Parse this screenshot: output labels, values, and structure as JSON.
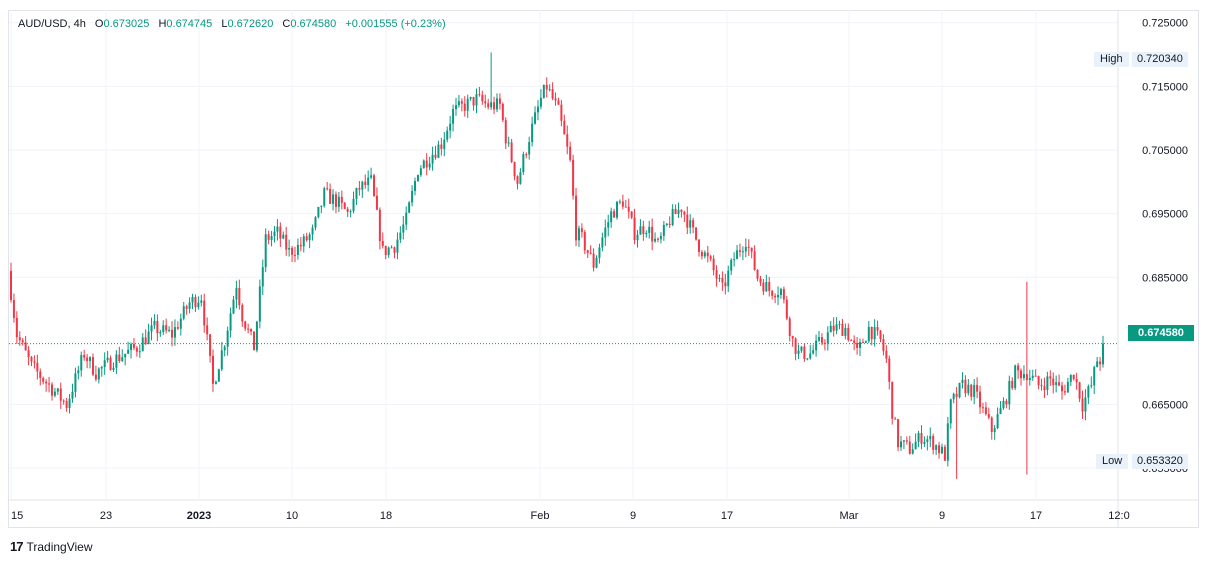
{
  "legend": {
    "symbol": "AUD/USD, 4h",
    "open_label": "O",
    "open": "0.673025",
    "high_label": "H",
    "high": "0.674745",
    "low_label": "L",
    "low": "0.672620",
    "close_label": "C",
    "close": "0.674580",
    "change": "+0.001555 (+0.23%)"
  },
  "price_scale": {
    "ticks": [
      "0.725000",
      "0.715000",
      "0.705000",
      "0.695000",
      "0.685000",
      "0.665000",
      "0.655000"
    ],
    "current_price": "0.674580",
    "high_label": "High",
    "high_value": "0.720340",
    "low_label": "Low",
    "low_value": "0.653320"
  },
  "time_scale": {
    "ticks": [
      "15",
      "23",
      "2023",
      "10",
      "18",
      "Feb",
      "9",
      "17",
      "Mar",
      "9",
      "17",
      "12:0"
    ]
  },
  "brand": {
    "name": "TradingView"
  },
  "colors": {
    "up": "#089981",
    "down": "#f23645",
    "grid": "#f0f3fa",
    "price_line": "#089981"
  },
  "chart_data": {
    "type": "candlestick",
    "symbol": "AUD/USD",
    "interval": "4h",
    "ylim": [
      0.65,
      0.727
    ],
    "x_ticks": [
      "15",
      "23",
      "2023",
      "10",
      "18",
      "Feb",
      "9",
      "17",
      "Mar",
      "9",
      "17",
      "12:0"
    ],
    "anchors": [
      [
        0,
        0.686
      ],
      [
        3,
        0.676
      ],
      [
        8,
        0.671
      ],
      [
        14,
        0.668
      ],
      [
        20,
        0.665
      ],
      [
        26,
        0.673
      ],
      [
        30,
        0.67
      ],
      [
        36,
        0.672
      ],
      [
        44,
        0.674
      ],
      [
        50,
        0.677
      ],
      [
        56,
        0.676
      ],
      [
        62,
        0.681
      ],
      [
        66,
        0.682
      ],
      [
        70,
        0.668
      ],
      [
        74,
        0.675
      ],
      [
        78,
        0.684
      ],
      [
        80,
        0.679
      ],
      [
        84,
        0.674
      ],
      [
        88,
        0.691
      ],
      [
        92,
        0.692
      ],
      [
        96,
        0.689
      ],
      [
        100,
        0.69
      ],
      [
        104,
        0.692
      ],
      [
        108,
        0.698
      ],
      [
        112,
        0.697
      ],
      [
        116,
        0.695
      ],
      [
        120,
        0.699
      ],
      [
        124,
        0.7
      ],
      [
        128,
        0.689
      ],
      [
        132,
        0.69
      ],
      [
        136,
        0.694
      ],
      [
        140,
        0.702
      ],
      [
        144,
        0.704
      ],
      [
        148,
        0.706
      ],
      [
        152,
        0.711
      ],
      [
        156,
        0.712
      ],
      [
        160,
        0.713
      ],
      [
        164,
        0.712
      ],
      [
        168,
        0.712
      ],
      [
        170,
        0.707
      ],
      [
        174,
        0.7
      ],
      [
        178,
        0.707
      ],
      [
        182,
        0.713
      ],
      [
        184,
        0.715
      ],
      [
        188,
        0.711
      ],
      [
        192,
        0.703
      ],
      [
        194,
        0.692
      ],
      [
        196,
        0.691
      ],
      [
        200,
        0.687
      ],
      [
        202,
        0.69
      ],
      [
        206,
        0.695
      ],
      [
        210,
        0.697
      ],
      [
        214,
        0.692
      ],
      [
        218,
        0.693
      ],
      [
        222,
        0.69
      ],
      [
        226,
        0.694
      ],
      [
        230,
        0.696
      ],
      [
        232,
        0.694
      ],
      [
        236,
        0.69
      ],
      [
        240,
        0.687
      ],
      [
        244,
        0.683
      ],
      [
        248,
        0.688
      ],
      [
        252,
        0.691
      ],
      [
        256,
        0.685
      ],
      [
        260,
        0.683
      ],
      [
        264,
        0.683
      ],
      [
        268,
        0.675
      ],
      [
        270,
        0.673
      ],
      [
        274,
        0.673
      ],
      [
        278,
        0.675
      ],
      [
        282,
        0.677
      ],
      [
        286,
        0.677
      ],
      [
        290,
        0.673
      ],
      [
        294,
        0.677
      ],
      [
        298,
        0.675
      ],
      [
        300,
        0.672
      ],
      [
        302,
        0.664
      ],
      [
        304,
        0.659
      ],
      [
        308,
        0.658
      ],
      [
        312,
        0.66
      ],
      [
        316,
        0.659
      ],
      [
        320,
        0.657
      ],
      [
        322,
        0.665
      ],
      [
        326,
        0.668
      ],
      [
        330,
        0.667
      ],
      [
        334,
        0.663
      ],
      [
        336,
        0.661
      ],
      [
        340,
        0.665
      ],
      [
        344,
        0.67
      ],
      [
        348,
        0.67
      ],
      [
        352,
        0.668
      ],
      [
        356,
        0.669
      ],
      [
        360,
        0.667
      ],
      [
        364,
        0.67
      ],
      [
        367,
        0.665
      ],
      [
        370,
        0.668
      ],
      [
        372,
        0.672
      ]
    ],
    "last_close": 0.67458,
    "period_high": 0.72034,
    "period_low": 0.65332
  }
}
